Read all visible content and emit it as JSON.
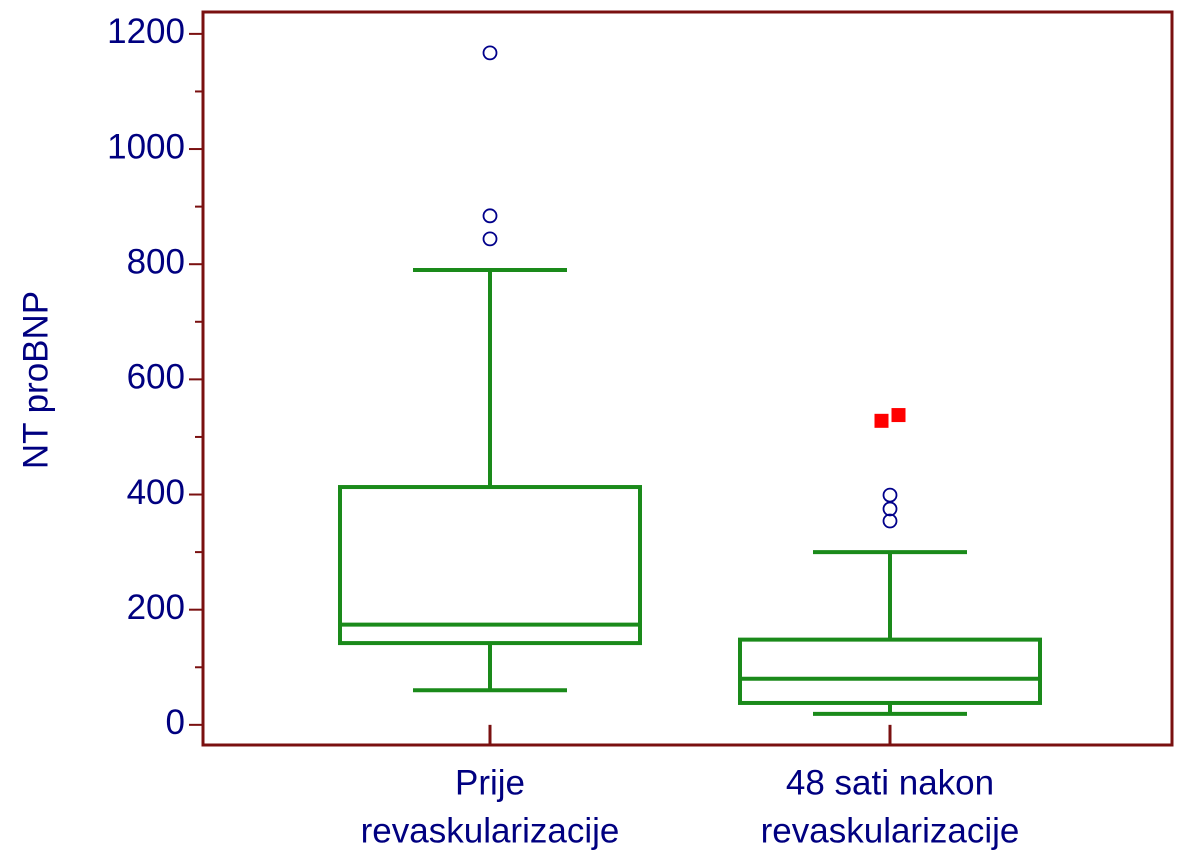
{
  "chart_data": {
    "type": "box",
    "ylabel": "NT proBNP",
    "categories": [
      [
        "Prije",
        "revaskularizacije"
      ],
      [
        "48 sati nakon",
        "revaskularizacije"
      ]
    ],
    "boxes": [
      {
        "whislo": 60,
        "q1": 142,
        "med": 174,
        "q3": 413,
        "whishi": 790,
        "outliers": [
          1167,
          884,
          844
        ],
        "far_outliers": []
      },
      {
        "whislo": 19,
        "q1": 38,
        "med": 80,
        "q3": 148,
        "whishi": 300,
        "outliers": [
          399,
          375,
          354
        ],
        "far_outliers": [
          528,
          538
        ]
      }
    ],
    "color": "#1a8a1a",
    "outlier_color": "#00008b",
    "far_outlier_color": "#ff0000",
    "frame_color": "#7a1010",
    "ylim": [
      -35,
      1238
    ],
    "yticks": [
      0,
      200,
      400,
      600,
      800,
      1000,
      1200
    ],
    "yminorticks": [
      100,
      300,
      500,
      700,
      900,
      1100
    ]
  }
}
